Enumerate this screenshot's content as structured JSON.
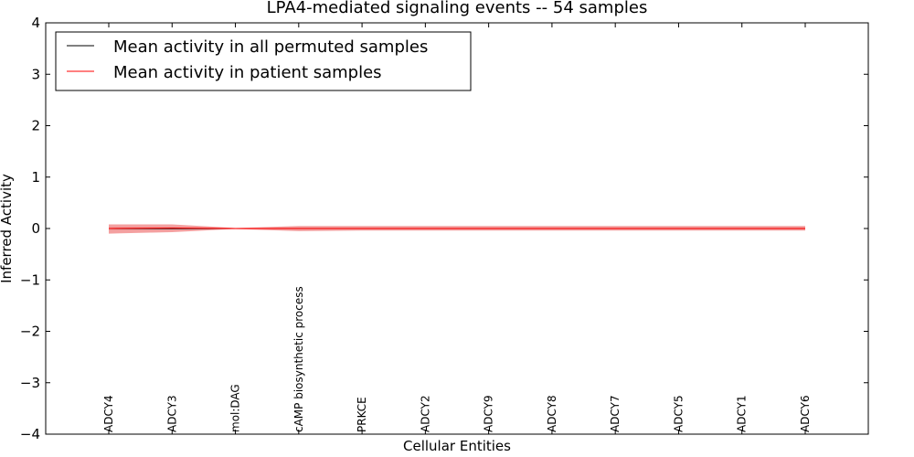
{
  "chart_data": {
    "type": "line",
    "title": "LPA4-mediated signaling events -- 54 samples",
    "xlabel": "Cellular Entities",
    "ylabel": "Inferred Activity",
    "ylim": [
      -4,
      4
    ],
    "yticks": [
      4,
      3,
      2,
      1,
      0,
      -1,
      -2,
      -3,
      -4
    ],
    "ytick_labels": [
      "4",
      "3",
      "2",
      "1",
      "0",
      "−1",
      "−2",
      "−3",
      "−4"
    ],
    "categories": [
      "ADCY4",
      "ADCY3",
      "mol:DAG",
      "cAMP biosynthetic process",
      "PRKCE",
      "ADCY2",
      "ADCY9",
      "ADCY8",
      "ADCY7",
      "ADCY5",
      "ADCY1",
      "ADCY6"
    ],
    "legend_position": "top-left",
    "series": [
      {
        "name": "Mean activity in all permuted samples",
        "color": "#000000",
        "values": [
          0,
          0,
          0,
          0,
          0,
          0,
          0,
          0,
          0,
          0,
          0,
          0
        ],
        "band_low": [
          -0.03,
          -0.03,
          -0.01,
          -0.02,
          -0.02,
          -0.02,
          -0.02,
          -0.02,
          -0.02,
          -0.02,
          -0.02,
          -0.02
        ],
        "band_high": [
          0.03,
          0.03,
          0.01,
          0.02,
          0.02,
          0.02,
          0.02,
          0.02,
          0.02,
          0.02,
          0.02,
          0.02
        ],
        "band_color": "#bbbbbb"
      },
      {
        "name": "Mean activity in patient samples",
        "color": "#ff0000",
        "values": [
          0,
          0.01,
          0,
          0,
          0,
          0,
          0,
          0,
          0,
          0,
          0,
          0
        ],
        "band_low": [
          -0.1,
          -0.07,
          -0.01,
          -0.05,
          -0.04,
          -0.04,
          -0.04,
          -0.04,
          -0.04,
          -0.04,
          -0.04,
          -0.04
        ],
        "band_high": [
          0.08,
          0.08,
          0.01,
          0.05,
          0.05,
          0.05,
          0.05,
          0.05,
          0.05,
          0.05,
          0.05,
          0.05
        ],
        "band_color": "#f08080"
      }
    ]
  }
}
